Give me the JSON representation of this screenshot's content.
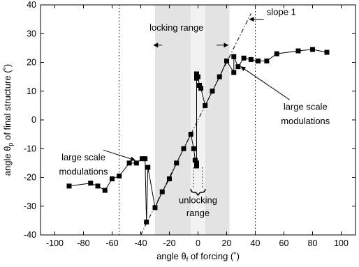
{
  "chart_data": {
    "type": "scatter",
    "xlabel": "angle θf of forcing (°)",
    "xlabel_parts": {
      "pre": "angle  θ",
      "sub": "f",
      "post": " of forcing (˚)"
    },
    "ylabel": "angle θp of final structure (°)",
    "ylabel_parts": {
      "pre": "angle θ",
      "sub": "p",
      "post": " of final structure (˚)"
    },
    "xlim": [
      -110,
      110
    ],
    "ylim": [
      -40,
      40
    ],
    "xticks": [
      -100,
      -80,
      -60,
      -40,
      -20,
      0,
      20,
      40,
      60,
      80,
      100
    ],
    "yticks": [
      -40,
      -30,
      -20,
      -10,
      0,
      10,
      20,
      30,
      40
    ],
    "grid": false,
    "series": [
      {
        "marker": "filled-square",
        "color": "#000000",
        "points": [
          [
            -90,
            -23
          ],
          [
            -75,
            -22
          ],
          [
            -70,
            -23
          ],
          [
            -65,
            -24.5
          ],
          [
            -60,
            -20.5
          ],
          [
            -55,
            -19.5
          ],
          [
            -48,
            -15
          ],
          [
            -43,
            -15
          ],
          [
            -39,
            -13.5
          ],
          [
            -37,
            -13.5
          ],
          [
            -36,
            -35.5
          ],
          [
            -35,
            -16.5
          ],
          [
            -30,
            -30.5
          ],
          [
            -25,
            -25
          ],
          [
            -20,
            -20.5
          ],
          [
            -15,
            -15
          ],
          [
            -10,
            -10
          ],
          [
            -5,
            -5
          ],
          [
            -3,
            -10
          ],
          [
            -2,
            -14
          ],
          [
            -1,
            -16
          ],
          [
            -1,
            -15
          ],
          [
            -1,
            14.5
          ],
          [
            -1,
            16
          ],
          [
            0,
            15
          ],
          [
            1,
            12
          ],
          [
            2,
            11
          ],
          [
            5,
            5
          ],
          [
            10,
            10
          ],
          [
            15,
            15
          ],
          [
            20,
            20.5
          ],
          [
            25,
            16.5
          ],
          [
            25,
            22
          ],
          [
            28,
            18.5
          ],
          [
            32,
            21.5
          ],
          [
            37,
            21
          ],
          [
            42,
            20.5
          ],
          [
            48,
            20.5
          ],
          [
            55,
            23
          ],
          [
            70,
            24
          ],
          [
            80,
            24.5
          ],
          [
            90,
            23.5
          ]
        ]
      }
    ],
    "reference_line": {
      "label": "slope 1",
      "style": "dash-dot",
      "from": [
        -40,
        -40
      ],
      "to": [
        37,
        37
      ]
    },
    "vertical_dotted_lines_x": [
      -55,
      40,
      -3,
      3
    ],
    "shaded_bands": [
      {
        "x": [
          -30,
          -5
        ],
        "color": "#e3e3e3"
      },
      {
        "x": [
          -5,
          5
        ],
        "color": "#f2f2f2"
      },
      {
        "x": [
          5,
          22
        ],
        "color": "#e3e3e3"
      }
    ],
    "annotations": [
      {
        "text": "locking range",
        "at": [
          -15,
          31
        ]
      },
      {
        "text": "slope 1",
        "at": [
          48,
          36.5
        ]
      },
      {
        "text": "large scale",
        "at": [
          75,
          3.5
        ]
      },
      {
        "text": "modulations",
        "at": [
          75,
          -1.5
        ]
      },
      {
        "text": "large scale",
        "at": [
          -80,
          -14
        ]
      },
      {
        "text": "modulations",
        "at": [
          -80,
          -19
        ]
      },
      {
        "text": "unlocking",
        "at": [
          0,
          -29
        ]
      },
      {
        "text": "range",
        "at": [
          0,
          -33.5
        ]
      }
    ]
  }
}
